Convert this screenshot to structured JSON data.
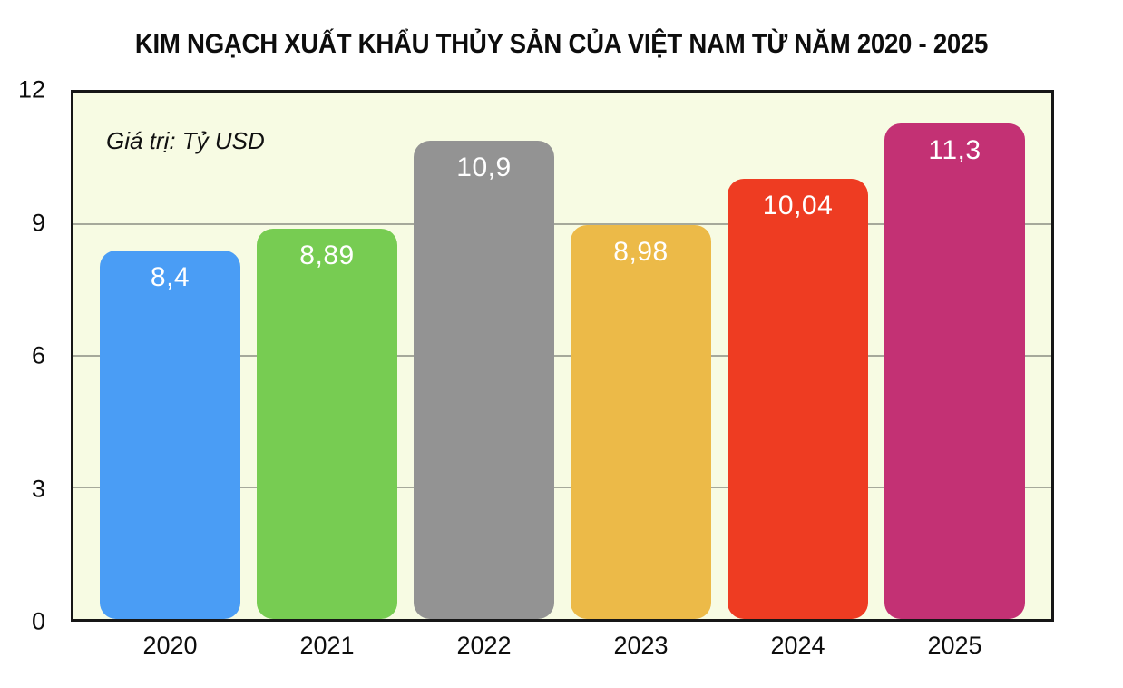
{
  "title": "KIM NGẠCH XUẤT KHẨU THỦY SẢN CỦA VIỆT NAM TỪ NĂM 2020 - 2025",
  "unit_label": "Giá trị: Tỷ USD",
  "chart_data": {
    "type": "bar",
    "title": "KIM NGẠCH XUẤT KHẨU THỦY SẢN CỦA VIỆT NAM TỪ NĂM 2020 - 2025",
    "categories": [
      "2020",
      "2021",
      "2022",
      "2023",
      "2024",
      "2025"
    ],
    "values": [
      8.4,
      8.89,
      10.9,
      8.98,
      10.04,
      11.3
    ],
    "value_labels": [
      "8,4",
      "8,89",
      "10,9",
      "8,98",
      "10,04",
      "11,3"
    ],
    "bar_colors": [
      "#4a9df5",
      "#77cc52",
      "#939393",
      "#ecba48",
      "#ee3c22",
      "#c33174"
    ],
    "xlabel": "",
    "ylabel": "Giá trị: Tỷ USD",
    "ylim": [
      0,
      12
    ],
    "yticks": [
      0,
      3,
      6,
      9,
      12
    ],
    "grid": true,
    "legend": "none",
    "plot_background": "#f7fbe3",
    "gridline_color": "#a6a99b",
    "border_color": "#161616",
    "label_color": "#ffffff"
  }
}
